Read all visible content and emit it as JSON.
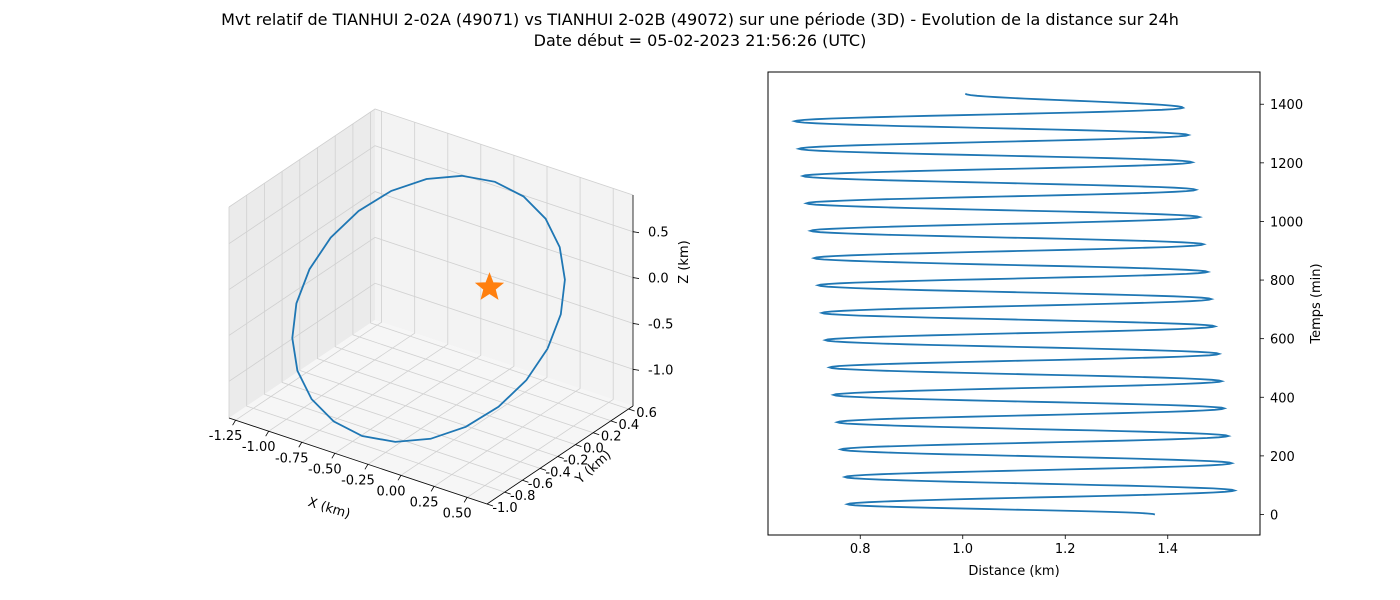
{
  "title_line1": "Mvt relatif de TIANHUI 2-02A (49071) vs TIANHUI 2-02B (49072) sur une période (3D) - Evolution de la distance sur 24h",
  "title_line2": "Date début = 05-02-2023 21:56:26 (UTC)",
  "colors": {
    "line": "#1f77b4",
    "marker": "#ff7f0e",
    "pane": "#f2f2f2",
    "grid": "#d0d0d0"
  },
  "chart_data": [
    {
      "type": "line",
      "projection": "3d",
      "xlabel": "X (km)",
      "ylabel": "Y (km)",
      "zlabel": "Z (km)",
      "xlim": [
        -1.3,
        0.65
      ],
      "ylim": [
        -1.0,
        0.65
      ],
      "zlim": [
        -1.4,
        0.9
      ],
      "x_ticks": [
        "-1.25",
        "-1.00",
        "-0.75",
        "-0.50",
        "-0.25",
        "0.00",
        "0.25",
        "0.50"
      ],
      "y_ticks": [
        "-1.0",
        "-0.8",
        "-0.6",
        "-0.4",
        "-0.2",
        "0.0",
        "0.2",
        "0.4",
        "0.6"
      ],
      "z_ticks": [
        "0.5",
        "0.0",
        "-0.5",
        "-1.0"
      ],
      "orbit": {
        "center": [
          -0.34,
          -0.18,
          -0.28
        ],
        "semi_axis_u": [
          0.9,
          0.0,
          0.0
        ],
        "semi_axis_v": [
          0.0,
          0.75,
          0.9
        ],
        "points": 24
      },
      "marker": {
        "x": 0.0,
        "y": 0.0,
        "z": 0.0,
        "symbol": "star"
      }
    },
    {
      "type": "line",
      "xlabel": "Distance (km)",
      "ylabel": "Temps (min)",
      "ylabel_side": "right",
      "xlim": [
        0.62,
        1.58
      ],
      "ylim": [
        -70,
        1510
      ],
      "x_ticks": [
        0.8,
        1.0,
        1.2,
        1.4
      ],
      "y_ticks": [
        0,
        200,
        400,
        600,
        800,
        1000,
        1200,
        1400
      ],
      "period_min": 93.5,
      "turning_points": [
        {
          "t": 0,
          "d": 1.375
        },
        {
          "t": 35,
          "d": 0.775
        },
        {
          "t": 82,
          "d": 1.53
        },
        {
          "t": 128,
          "d": 0.77
        },
        {
          "t": 175,
          "d": 1.525
        },
        {
          "t": 222,
          "d": 0.762
        },
        {
          "t": 268,
          "d": 1.518
        },
        {
          "t": 315,
          "d": 0.755
        },
        {
          "t": 362,
          "d": 1.51
        },
        {
          "t": 408,
          "d": 0.748
        },
        {
          "t": 455,
          "d": 1.505
        },
        {
          "t": 502,
          "d": 0.74
        },
        {
          "t": 548,
          "d": 1.5
        },
        {
          "t": 595,
          "d": 0.732
        },
        {
          "t": 642,
          "d": 1.492
        },
        {
          "t": 688,
          "d": 0.725
        },
        {
          "t": 735,
          "d": 1.485
        },
        {
          "t": 782,
          "d": 0.718
        },
        {
          "t": 828,
          "d": 1.478
        },
        {
          "t": 875,
          "d": 0.71
        },
        {
          "t": 922,
          "d": 1.47
        },
        {
          "t": 968,
          "d": 0.703
        },
        {
          "t": 1015,
          "d": 1.462
        },
        {
          "t": 1062,
          "d": 0.695
        },
        {
          "t": 1108,
          "d": 1.455
        },
        {
          "t": 1155,
          "d": 0.688
        },
        {
          "t": 1202,
          "d": 1.448
        },
        {
          "t": 1248,
          "d": 0.68
        },
        {
          "t": 1295,
          "d": 1.44
        },
        {
          "t": 1342,
          "d": 0.672
        },
        {
          "t": 1388,
          "d": 1.43
        },
        {
          "t": 1436,
          "d": 1.005
        }
      ]
    }
  ]
}
